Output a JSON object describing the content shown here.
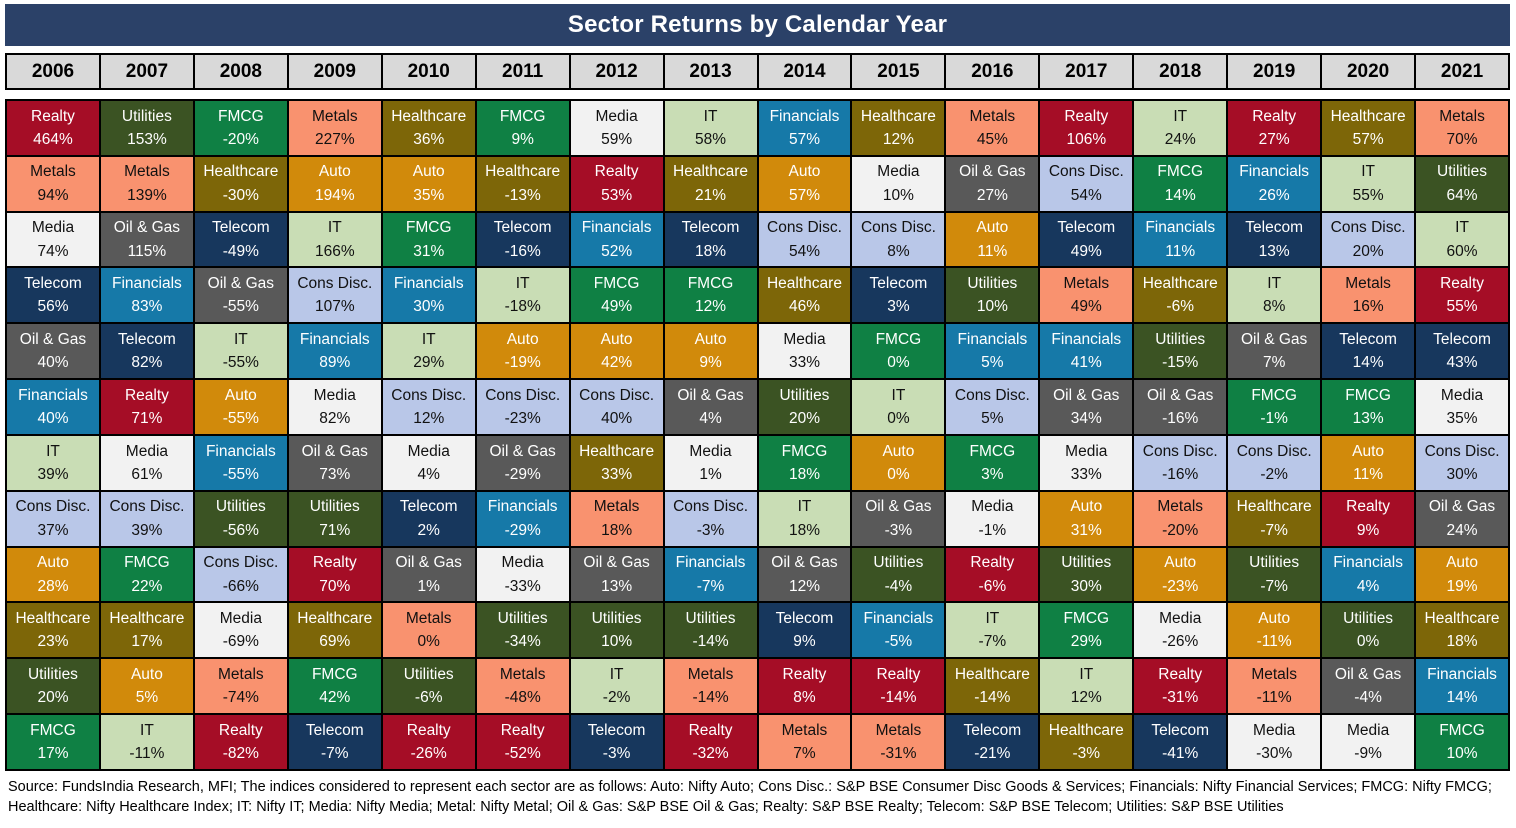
{
  "title": "Sector Returns by Calendar Year",
  "title_bg": "#2B4168",
  "header_bg": "#D9D9D9",
  "footer": "Source: FundsIndia Research, MFI; The indices considered to represent each sector are as follows: Auto: Nifty Auto; Cons Disc.: S&P BSE Consumer Disc Goods & Services; Financials: Nifty Financial Services; FMCG: Nifty FMCG; Healthcare: Nifty Healthcare Index; IT: Nifty IT; Media: Nifty Media; Metal: Nifty Metal; Oil & Gas: S&P BSE Oil & Gas; Realty: S&P BSE Realty; Telecom: S&P BSE Telecom; Utilities: S&P BSE Utilities",
  "header": {
    "years": [
      "2006",
      "2007",
      "2008",
      "2009",
      "2010",
      "2011",
      "2012",
      "2013",
      "2014",
      "2015",
      "2016",
      "2017",
      "2018",
      "2019",
      "2020",
      "2021"
    ]
  },
  "sector_styles": {
    "Realty": {
      "bg": "#A50D26",
      "text": "#FFFFFF"
    },
    "Metals": {
      "bg": "#F9926F",
      "text": "#111111"
    },
    "Media": {
      "bg": "#F2F2F2",
      "text": "#111111"
    },
    "Telecom": {
      "bg": "#17375D",
      "text": "#FFFFFF"
    },
    "Utilities": {
      "bg": "#3B5323",
      "text": "#FFFFFF"
    },
    "Oil & Gas": {
      "bg": "#595959",
      "text": "#FFFFFF"
    },
    "Financials": {
      "bg": "#1679A8",
      "text": "#FFFFFF"
    },
    "IT": {
      "bg": "#C9DDB5",
      "text": "#111111"
    },
    "Cons Disc.": {
      "bg": "#B9C7E8",
      "text": "#111111"
    },
    "Auto": {
      "bg": "#D18A0B",
      "text": "#FFFFFF"
    },
    "Healthcare": {
      "bg": "#7D6608",
      "text": "#FFFFFF"
    },
    "FMCG": {
      "bg": "#0F8044",
      "text": "#FFFFFF"
    }
  },
  "chart_data": {
    "type": "table",
    "title": "Sector Returns by Calendar Year",
    "categories": [
      "2006",
      "2007",
      "2008",
      "2009",
      "2010",
      "2011",
      "2012",
      "2013",
      "2014",
      "2015",
      "2016",
      "2017",
      "2018",
      "2019",
      "2020",
      "2021"
    ],
    "columns": [
      {
        "year": "2006",
        "cells": [
          {
            "sector": "Realty",
            "value": "464%"
          },
          {
            "sector": "Metals",
            "value": "94%"
          },
          {
            "sector": "Media",
            "value": "74%"
          },
          {
            "sector": "Telecom",
            "value": "56%"
          },
          {
            "sector": "Oil & Gas",
            "value": "40%"
          },
          {
            "sector": "Financials",
            "value": "40%"
          },
          {
            "sector": "IT",
            "value": "39%"
          },
          {
            "sector": "Cons Disc.",
            "value": "37%"
          },
          {
            "sector": "Auto",
            "value": "28%"
          },
          {
            "sector": "Healthcare",
            "value": "23%"
          },
          {
            "sector": "Utilities",
            "value": "20%"
          },
          {
            "sector": "FMCG",
            "value": "17%"
          }
        ]
      },
      {
        "year": "2007",
        "cells": [
          {
            "sector": "Utilities",
            "value": "153%"
          },
          {
            "sector": "Metals",
            "value": "139%"
          },
          {
            "sector": "Oil & Gas",
            "value": "115%"
          },
          {
            "sector": "Financials",
            "value": "83%"
          },
          {
            "sector": "Telecom",
            "value": "82%"
          },
          {
            "sector": "Realty",
            "value": "71%"
          },
          {
            "sector": "Media",
            "value": "61%"
          },
          {
            "sector": "Cons Disc.",
            "value": "39%"
          },
          {
            "sector": "FMCG",
            "value": "22%"
          },
          {
            "sector": "Healthcare",
            "value": "17%"
          },
          {
            "sector": "Auto",
            "value": "5%"
          },
          {
            "sector": "IT",
            "value": "-11%"
          }
        ]
      },
      {
        "year": "2008",
        "cells": [
          {
            "sector": "FMCG",
            "value": "-20%"
          },
          {
            "sector": "Healthcare",
            "value": "-30%"
          },
          {
            "sector": "Telecom",
            "value": "-49%"
          },
          {
            "sector": "Oil & Gas",
            "value": "-55%"
          },
          {
            "sector": "IT",
            "value": "-55%"
          },
          {
            "sector": "Auto",
            "value": "-55%"
          },
          {
            "sector": "Financials",
            "value": "-55%"
          },
          {
            "sector": "Utilities",
            "value": "-56%"
          },
          {
            "sector": "Cons Disc.",
            "value": "-66%"
          },
          {
            "sector": "Media",
            "value": "-69%"
          },
          {
            "sector": "Metals",
            "value": "-74%"
          },
          {
            "sector": "Realty",
            "value": "-82%"
          }
        ]
      },
      {
        "year": "2009",
        "cells": [
          {
            "sector": "Metals",
            "value": "227%"
          },
          {
            "sector": "Auto",
            "value": "194%"
          },
          {
            "sector": "IT",
            "value": "166%"
          },
          {
            "sector": "Cons Disc.",
            "value": "107%"
          },
          {
            "sector": "Financials",
            "value": "89%"
          },
          {
            "sector": "Media",
            "value": "82%"
          },
          {
            "sector": "Oil & Gas",
            "value": "73%"
          },
          {
            "sector": "Utilities",
            "value": "71%"
          },
          {
            "sector": "Realty",
            "value": "70%"
          },
          {
            "sector": "Healthcare",
            "value": "69%"
          },
          {
            "sector": "FMCG",
            "value": "42%"
          },
          {
            "sector": "Telecom",
            "value": "-7%"
          }
        ]
      },
      {
        "year": "2010",
        "cells": [
          {
            "sector": "Healthcare",
            "value": "36%"
          },
          {
            "sector": "Auto",
            "value": "35%"
          },
          {
            "sector": "FMCG",
            "value": "31%"
          },
          {
            "sector": "Financials",
            "value": "30%"
          },
          {
            "sector": "IT",
            "value": "29%"
          },
          {
            "sector": "Cons Disc.",
            "value": "12%"
          },
          {
            "sector": "Media",
            "value": "4%"
          },
          {
            "sector": "Telecom",
            "value": "2%"
          },
          {
            "sector": "Oil & Gas",
            "value": "1%"
          },
          {
            "sector": "Metals",
            "value": "0%"
          },
          {
            "sector": "Utilities",
            "value": "-6%"
          },
          {
            "sector": "Realty",
            "value": "-26%"
          }
        ]
      },
      {
        "year": "2011",
        "cells": [
          {
            "sector": "FMCG",
            "value": "9%"
          },
          {
            "sector": "Healthcare",
            "value": "-13%"
          },
          {
            "sector": "Telecom",
            "value": "-16%"
          },
          {
            "sector": "IT",
            "value": "-18%"
          },
          {
            "sector": "Auto",
            "value": "-19%"
          },
          {
            "sector": "Cons Disc.",
            "value": "-23%"
          },
          {
            "sector": "Oil & Gas",
            "value": "-29%"
          },
          {
            "sector": "Financials",
            "value": "-29%"
          },
          {
            "sector": "Media",
            "value": "-33%"
          },
          {
            "sector": "Utilities",
            "value": "-34%"
          },
          {
            "sector": "Metals",
            "value": "-48%"
          },
          {
            "sector": "Realty",
            "value": "-52%"
          }
        ]
      },
      {
        "year": "2012",
        "cells": [
          {
            "sector": "Media",
            "value": "59%"
          },
          {
            "sector": "Realty",
            "value": "53%"
          },
          {
            "sector": "Financials",
            "value": "52%"
          },
          {
            "sector": "FMCG",
            "value": "49%"
          },
          {
            "sector": "Auto",
            "value": "42%"
          },
          {
            "sector": "Cons Disc.",
            "value": "40%"
          },
          {
            "sector": "Healthcare",
            "value": "33%"
          },
          {
            "sector": "Metals",
            "value": "18%"
          },
          {
            "sector": "Oil & Gas",
            "value": "13%"
          },
          {
            "sector": "Utilities",
            "value": "10%"
          },
          {
            "sector": "IT",
            "value": "-2%"
          },
          {
            "sector": "Telecom",
            "value": "-3%"
          }
        ]
      },
      {
        "year": "2013",
        "cells": [
          {
            "sector": "IT",
            "value": "58%"
          },
          {
            "sector": "Healthcare",
            "value": "21%"
          },
          {
            "sector": "Telecom",
            "value": "18%"
          },
          {
            "sector": "FMCG",
            "value": "12%"
          },
          {
            "sector": "Auto",
            "value": "9%"
          },
          {
            "sector": "Oil & Gas",
            "value": "4%"
          },
          {
            "sector": "Media",
            "value": "1%"
          },
          {
            "sector": "Cons Disc.",
            "value": "-3%"
          },
          {
            "sector": "Financials",
            "value": "-7%"
          },
          {
            "sector": "Utilities",
            "value": "-14%"
          },
          {
            "sector": "Metals",
            "value": "-14%"
          },
          {
            "sector": "Realty",
            "value": "-32%"
          }
        ]
      },
      {
        "year": "2014",
        "cells": [
          {
            "sector": "Financials",
            "value": "57%"
          },
          {
            "sector": "Auto",
            "value": "57%"
          },
          {
            "sector": "Cons Disc.",
            "value": "54%"
          },
          {
            "sector": "Healthcare",
            "value": "46%"
          },
          {
            "sector": "Media",
            "value": "33%"
          },
          {
            "sector": "Utilities",
            "value": "20%"
          },
          {
            "sector": "FMCG",
            "value": "18%"
          },
          {
            "sector": "IT",
            "value": "18%"
          },
          {
            "sector": "Oil & Gas",
            "value": "12%"
          },
          {
            "sector": "Telecom",
            "value": "9%"
          },
          {
            "sector": "Realty",
            "value": "8%"
          },
          {
            "sector": "Metals",
            "value": "7%"
          }
        ]
      },
      {
        "year": "2015",
        "cells": [
          {
            "sector": "Healthcare",
            "value": "12%"
          },
          {
            "sector": "Media",
            "value": "10%"
          },
          {
            "sector": "Cons Disc.",
            "value": "8%"
          },
          {
            "sector": "Telecom",
            "value": "3%"
          },
          {
            "sector": "FMCG",
            "value": "0%"
          },
          {
            "sector": "IT",
            "value": "0%"
          },
          {
            "sector": "Auto",
            "value": "0%"
          },
          {
            "sector": "Oil & Gas",
            "value": "-3%"
          },
          {
            "sector": "Utilities",
            "value": "-4%"
          },
          {
            "sector": "Financials",
            "value": "-5%"
          },
          {
            "sector": "Realty",
            "value": "-14%"
          },
          {
            "sector": "Metals",
            "value": "-31%"
          }
        ]
      },
      {
        "year": "2016",
        "cells": [
          {
            "sector": "Metals",
            "value": "45%"
          },
          {
            "sector": "Oil & Gas",
            "value": "27%"
          },
          {
            "sector": "Auto",
            "value": "11%"
          },
          {
            "sector": "Utilities",
            "value": "10%"
          },
          {
            "sector": "Financials",
            "value": "5%"
          },
          {
            "sector": "Cons Disc.",
            "value": "5%"
          },
          {
            "sector": "FMCG",
            "value": "3%"
          },
          {
            "sector": "Media",
            "value": "-1%"
          },
          {
            "sector": "Realty",
            "value": "-6%"
          },
          {
            "sector": "IT",
            "value": "-7%"
          },
          {
            "sector": "Healthcare",
            "value": "-14%"
          },
          {
            "sector": "Telecom",
            "value": "-21%"
          }
        ]
      },
      {
        "year": "2017",
        "cells": [
          {
            "sector": "Realty",
            "value": "106%"
          },
          {
            "sector": "Cons Disc.",
            "value": "54%"
          },
          {
            "sector": "Telecom",
            "value": "49%"
          },
          {
            "sector": "Metals",
            "value": "49%"
          },
          {
            "sector": "Financials",
            "value": "41%"
          },
          {
            "sector": "Oil & Gas",
            "value": "34%"
          },
          {
            "sector": "Media",
            "value": "33%"
          },
          {
            "sector": "Auto",
            "value": "31%"
          },
          {
            "sector": "Utilities",
            "value": "30%"
          },
          {
            "sector": "FMCG",
            "value": "29%"
          },
          {
            "sector": "IT",
            "value": "12%"
          },
          {
            "sector": "Healthcare",
            "value": "-3%"
          }
        ]
      },
      {
        "year": "2018",
        "cells": [
          {
            "sector": "IT",
            "value": "24%"
          },
          {
            "sector": "FMCG",
            "value": "14%"
          },
          {
            "sector": "Financials",
            "value": "11%"
          },
          {
            "sector": "Healthcare",
            "value": "-6%"
          },
          {
            "sector": "Utilities",
            "value": "-15%"
          },
          {
            "sector": "Oil & Gas",
            "value": "-16%"
          },
          {
            "sector": "Cons Disc.",
            "value": "-16%"
          },
          {
            "sector": "Metals",
            "value": "-20%"
          },
          {
            "sector": "Auto",
            "value": "-23%"
          },
          {
            "sector": "Media",
            "value": "-26%"
          },
          {
            "sector": "Realty",
            "value": "-31%"
          },
          {
            "sector": "Telecom",
            "value": "-41%"
          }
        ]
      },
      {
        "year": "2019",
        "cells": [
          {
            "sector": "Realty",
            "value": "27%"
          },
          {
            "sector": "Financials",
            "value": "26%"
          },
          {
            "sector": "Telecom",
            "value": "13%"
          },
          {
            "sector": "IT",
            "value": "8%"
          },
          {
            "sector": "Oil & Gas",
            "value": "7%"
          },
          {
            "sector": "FMCG",
            "value": "-1%"
          },
          {
            "sector": "Cons Disc.",
            "value": "-2%"
          },
          {
            "sector": "Healthcare",
            "value": "-7%"
          },
          {
            "sector": "Utilities",
            "value": "-7%"
          },
          {
            "sector": "Auto",
            "value": "-11%"
          },
          {
            "sector": "Metals",
            "value": "-11%"
          },
          {
            "sector": "Media",
            "value": "-30%"
          }
        ]
      },
      {
        "year": "2020",
        "cells": [
          {
            "sector": "Healthcare",
            "value": "57%"
          },
          {
            "sector": "IT",
            "value": "55%"
          },
          {
            "sector": "Cons Disc.",
            "value": "20%"
          },
          {
            "sector": "Metals",
            "value": "16%"
          },
          {
            "sector": "Telecom",
            "value": "14%"
          },
          {
            "sector": "FMCG",
            "value": "13%"
          },
          {
            "sector": "Auto",
            "value": "11%"
          },
          {
            "sector": "Realty",
            "value": "9%"
          },
          {
            "sector": "Financials",
            "value": "4%"
          },
          {
            "sector": "Utilities",
            "value": "0%"
          },
          {
            "sector": "Oil & Gas",
            "value": "-4%"
          },
          {
            "sector": "Media",
            "value": "-9%"
          }
        ]
      },
      {
        "year": "2021",
        "cells": [
          {
            "sector": "Metals",
            "value": "70%"
          },
          {
            "sector": "Utilities",
            "value": "64%"
          },
          {
            "sector": "IT",
            "value": "60%"
          },
          {
            "sector": "Realty",
            "value": "55%"
          },
          {
            "sector": "Telecom",
            "value": "43%"
          },
          {
            "sector": "Media",
            "value": "35%"
          },
          {
            "sector": "Cons Disc.",
            "value": "30%"
          },
          {
            "sector": "Oil & Gas",
            "value": "24%"
          },
          {
            "sector": "Auto",
            "value": "19%"
          },
          {
            "sector": "Healthcare",
            "value": "18%"
          },
          {
            "sector": "Financials",
            "value": "14%"
          },
          {
            "sector": "FMCG",
            "value": "10%"
          }
        ]
      }
    ]
  }
}
